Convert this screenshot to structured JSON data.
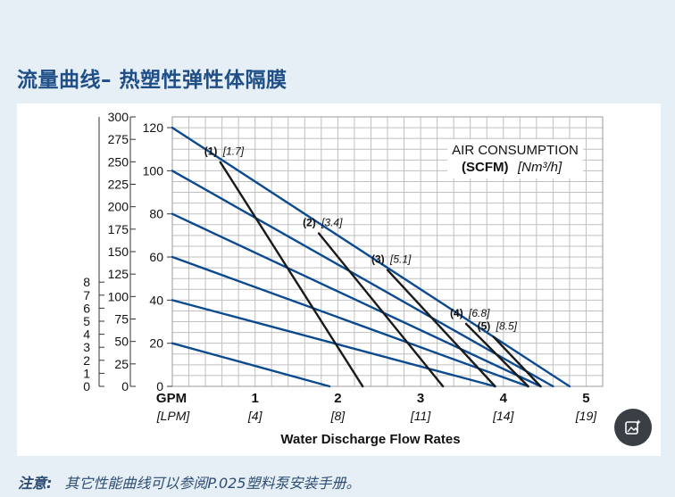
{
  "title": "流量曲线– 热塑性弹性体隔膜",
  "note": {
    "label": "注意:",
    "text": "其它性能曲线可以参阅P.025塑料泵安装手册。"
  },
  "image_button": {
    "icon": "image-sparkle-icon"
  },
  "colors": {
    "title": "#1f4f86",
    "background": "#e6eef6",
    "blue_curve": "#0b4a8f",
    "black_curve": "#1a1a1a",
    "grid": "#bfbfbf"
  },
  "chart_data": {
    "type": "line",
    "legend_title": "AIR CONSUMPTION",
    "legend_units_bold": "(SCFM)",
    "legend_units_italic": "[Nm³/h]",
    "xlabel": "Water Discharge Flow Rates",
    "x_unit_primary": "GPM",
    "x_unit_secondary": "[LPM]",
    "x_ticks": [
      {
        "value": 1,
        "label": "1",
        "label2": "[4]"
      },
      {
        "value": 2,
        "label": "2",
        "label2": "[8]"
      },
      {
        "value": 3,
        "label": "3",
        "label2": "[11]"
      },
      {
        "value": 4,
        "label": "4",
        "label2": "[14]"
      },
      {
        "value": 5,
        "label": "5",
        "label2": "[19]"
      }
    ],
    "xlim": [
      0,
      5.2
    ],
    "ylim": [
      0,
      125
    ],
    "y_ticks_ft": [
      {
        "value": 0,
        "label": "0"
      },
      {
        "value": 20,
        "label": "20"
      },
      {
        "value": 40,
        "label": "40"
      },
      {
        "value": 60,
        "label": "60"
      },
      {
        "value": 80,
        "label": "80"
      },
      {
        "value": 100,
        "label": "100"
      },
      {
        "value": 120,
        "label": "120"
      }
    ],
    "y_ticks_psig": [
      {
        "value": 0,
        "label": "0"
      },
      {
        "value": 25,
        "label": "25"
      },
      {
        "value": 50,
        "label": "50"
      },
      {
        "value": 75,
        "label": "75"
      },
      {
        "value": 100,
        "label": "100"
      },
      {
        "value": 125,
        "label": "125"
      },
      {
        "value": 150,
        "label": "150"
      },
      {
        "value": 175,
        "label": "175"
      },
      {
        "value": 200,
        "label": "200"
      },
      {
        "value": 225,
        "label": "225"
      },
      {
        "value": 250,
        "label": "250"
      },
      {
        "value": 275,
        "label": "275"
      },
      {
        "value": 300,
        "label": "300"
      }
    ],
    "y_ticks_bar": [
      {
        "value": 0,
        "label": "0"
      },
      {
        "value": 1,
        "label": "1"
      },
      {
        "value": 2,
        "label": "2"
      },
      {
        "value": 3,
        "label": "3"
      },
      {
        "value": 4,
        "label": "4"
      },
      {
        "value": 5,
        "label": "5"
      },
      {
        "value": 6,
        "label": "6"
      },
      {
        "value": 7,
        "label": "7"
      },
      {
        "value": 8,
        "label": "8"
      }
    ],
    "pressure_lines": [
      {
        "start": [
          0,
          120
        ],
        "end": [
          4.8,
          0
        ]
      },
      {
        "start": [
          0,
          100
        ],
        "end": [
          4.6,
          0
        ]
      },
      {
        "start": [
          0,
          80
        ],
        "end": [
          4.45,
          0
        ]
      },
      {
        "start": [
          0,
          60
        ],
        "end": [
          4.3,
          0
        ]
      },
      {
        "start": [
          0,
          40
        ],
        "end": [
          3.9,
          0
        ]
      },
      {
        "start": [
          0,
          20
        ],
        "end": [
          1.9,
          0
        ]
      }
    ],
    "air_curves": [
      {
        "id": "(1)",
        "value": "[1.7]",
        "points": [
          [
            0.58,
            104
          ],
          [
            2.3,
            0
          ]
        ]
      },
      {
        "id": "(2)",
        "value": "[3.4]",
        "points": [
          [
            1.77,
            71
          ],
          [
            3.27,
            0
          ]
        ]
      },
      {
        "id": "(3)",
        "value": "[5.1]",
        "points": [
          [
            2.6,
            54
          ],
          [
            3.9,
            0
          ]
        ]
      },
      {
        "id": "(4)",
        "value": "[6.8]",
        "points": [
          [
            3.55,
            29
          ],
          [
            4.3,
            0
          ]
        ]
      },
      {
        "id": "(5)",
        "value": "[8.5]",
        "points": [
          [
            3.88,
            23
          ],
          [
            4.45,
            0
          ]
        ]
      }
    ]
  }
}
